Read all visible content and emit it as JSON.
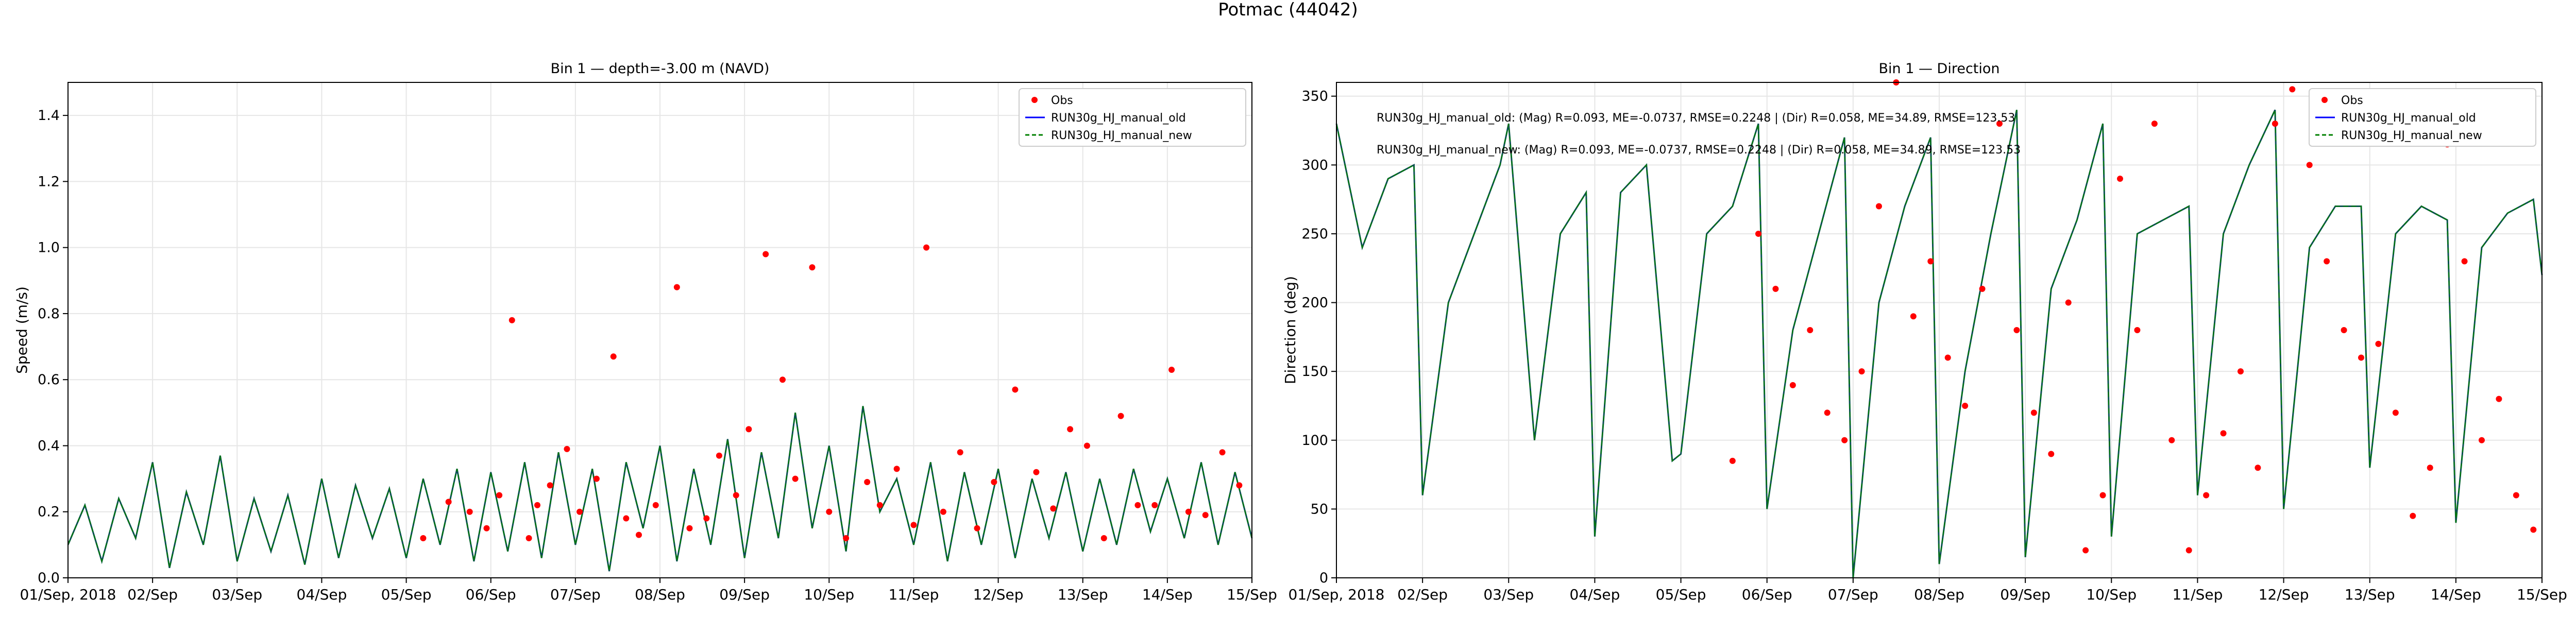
{
  "figure": {
    "title": "Potmac (44042)"
  },
  "chart_data": [
    {
      "type": "line",
      "title": "Bin 1 — depth=-3.00 m (NAVD)",
      "xlabel": "",
      "ylabel": "Speed (m/s)",
      "x_ticks": [
        "01/Sep, 2018",
        "02/Sep",
        "03/Sep",
        "04/Sep",
        "05/Sep",
        "06/Sep",
        "07/Sep",
        "08/Sep",
        "09/Sep",
        "10/Sep",
        "11/Sep",
        "12/Sep",
        "13/Sep",
        "14/Sep",
        "15/Sep"
      ],
      "xlim": [
        0,
        14
      ],
      "ylim": [
        0,
        1.5
      ],
      "y_ticks": [
        "0.0",
        "0.2",
        "0.4",
        "0.6",
        "0.8",
        "1.0",
        "1.2",
        "1.4"
      ],
      "grid": true,
      "legend_position": "top-right",
      "colors": {
        "obs": "#ff0000",
        "old": "#0000ff",
        "new": "#008000",
        "overlap": "#0b4f52"
      },
      "series": [
        {
          "name": "Obs",
          "kind": "scatter",
          "x": [
            4.2,
            4.5,
            4.75,
            4.95,
            5.1,
            5.25,
            5.45,
            5.55,
            5.7,
            5.9,
            6.05,
            6.25,
            6.45,
            6.6,
            6.75,
            6.95,
            7.2,
            7.35,
            7.55,
            7.7,
            7.9,
            8.05,
            8.25,
            8.45,
            8.6,
            8.8,
            9.0,
            9.2,
            9.45,
            9.6,
            9.8,
            10.0,
            10.15,
            10.35,
            10.55,
            10.75,
            10.95,
            11.2,
            11.45,
            11.65,
            11.85,
            12.05,
            12.25,
            12.45,
            12.65,
            12.85,
            13.05,
            13.25,
            13.45,
            13.65,
            13.85
          ],
          "y": [
            0.12,
            0.23,
            0.2,
            0.15,
            0.25,
            0.78,
            0.12,
            0.22,
            0.28,
            0.39,
            0.2,
            0.3,
            0.67,
            0.18,
            0.13,
            0.22,
            0.88,
            0.15,
            0.18,
            0.37,
            0.25,
            0.45,
            0.98,
            0.6,
            0.3,
            0.94,
            0.2,
            0.12,
            0.29,
            0.22,
            0.33,
            0.16,
            1.0,
            0.2,
            0.38,
            0.15,
            0.29,
            0.57,
            0.32,
            0.21,
            0.45,
            0.4,
            0.12,
            0.49,
            0.22,
            0.22,
            0.63,
            0.2,
            0.19,
            0.38,
            0.28
          ]
        },
        {
          "name": "RUN30g_HJ_manual_old",
          "kind": "line",
          "x": [
            0,
            0.2,
            0.4,
            0.6,
            0.8,
            1.0,
            1.2,
            1.4,
            1.6,
            1.8,
            2.0,
            2.2,
            2.4,
            2.6,
            2.8,
            3.0,
            3.2,
            3.4,
            3.6,
            3.8,
            4.0,
            4.2,
            4.4,
            4.6,
            4.8,
            5.0,
            5.2,
            5.4,
            5.6,
            5.8,
            6.0,
            6.2,
            6.4,
            6.6,
            6.8,
            7.0,
            7.2,
            7.4,
            7.6,
            7.8,
            8.0,
            8.2,
            8.4,
            8.6,
            8.8,
            9.0,
            9.2,
            9.4,
            9.6,
            9.8,
            10.0,
            10.2,
            10.4,
            10.6,
            10.8,
            11.0,
            11.2,
            11.4,
            11.6,
            11.8,
            12.0,
            12.2,
            12.4,
            12.6,
            12.8,
            13.0,
            13.2,
            13.4,
            13.6,
            13.8,
            14.0
          ],
          "y": [
            0.1,
            0.22,
            0.05,
            0.24,
            0.12,
            0.35,
            0.03,
            0.26,
            0.1,
            0.37,
            0.05,
            0.24,
            0.08,
            0.25,
            0.04,
            0.3,
            0.06,
            0.28,
            0.12,
            0.27,
            0.06,
            0.3,
            0.1,
            0.33,
            0.05,
            0.32,
            0.08,
            0.35,
            0.06,
            0.38,
            0.1,
            0.33,
            0.02,
            0.35,
            0.15,
            0.4,
            0.05,
            0.33,
            0.1,
            0.42,
            0.06,
            0.38,
            0.12,
            0.5,
            0.15,
            0.4,
            0.08,
            0.52,
            0.2,
            0.3,
            0.1,
            0.35,
            0.05,
            0.32,
            0.1,
            0.33,
            0.06,
            0.3,
            0.12,
            0.32,
            0.08,
            0.3,
            0.1,
            0.33,
            0.14,
            0.3,
            0.12,
            0.35,
            0.1,
            0.32,
            0.12
          ]
        },
        {
          "name": "RUN30g_HJ_manual_new",
          "kind": "line",
          "style": "dashed",
          "x": [
            0,
            0.2,
            0.4,
            0.6,
            0.8,
            1.0,
            1.2,
            1.4,
            1.6,
            1.8,
            2.0,
            2.2,
            2.4,
            2.6,
            2.8,
            3.0,
            3.2,
            3.4,
            3.6,
            3.8,
            4.0,
            4.2,
            4.4,
            4.6,
            4.8,
            5.0,
            5.2,
            5.4,
            5.6,
            5.8,
            6.0,
            6.2,
            6.4,
            6.6,
            6.8,
            7.0,
            7.2,
            7.4,
            7.6,
            7.8,
            8.0,
            8.2,
            8.4,
            8.6,
            8.8,
            9.0,
            9.2,
            9.4,
            9.6,
            9.8,
            10.0,
            10.2,
            10.4,
            10.6,
            10.8,
            11.0,
            11.2,
            11.4,
            11.6,
            11.8,
            12.0,
            12.2,
            12.4,
            12.6,
            12.8,
            13.0,
            13.2,
            13.4,
            13.6,
            13.8,
            14.0
          ],
          "y": [
            0.1,
            0.22,
            0.05,
            0.24,
            0.12,
            0.35,
            0.03,
            0.26,
            0.1,
            0.37,
            0.05,
            0.24,
            0.08,
            0.25,
            0.04,
            0.3,
            0.06,
            0.28,
            0.12,
            0.27,
            0.06,
            0.3,
            0.1,
            0.33,
            0.05,
            0.32,
            0.08,
            0.35,
            0.06,
            0.38,
            0.1,
            0.33,
            0.02,
            0.35,
            0.15,
            0.4,
            0.05,
            0.33,
            0.1,
            0.42,
            0.06,
            0.38,
            0.12,
            0.5,
            0.15,
            0.4,
            0.08,
            0.52,
            0.2,
            0.3,
            0.1,
            0.35,
            0.05,
            0.32,
            0.1,
            0.33,
            0.06,
            0.3,
            0.12,
            0.32,
            0.08,
            0.3,
            0.1,
            0.33,
            0.14,
            0.3,
            0.12,
            0.35,
            0.1,
            0.32,
            0.12
          ]
        }
      ],
      "annotations": []
    },
    {
      "type": "line",
      "title": "Bin 1 — Direction",
      "xlabel": "",
      "ylabel": "Direction (deg)",
      "x_ticks": [
        "01/Sep, 2018",
        "02/Sep",
        "03/Sep",
        "04/Sep",
        "05/Sep",
        "06/Sep",
        "07/Sep",
        "08/Sep",
        "09/Sep",
        "10/Sep",
        "11/Sep",
        "12/Sep",
        "13/Sep",
        "14/Sep",
        "15/Sep"
      ],
      "xlim": [
        0,
        14
      ],
      "ylim": [
        0,
        360
      ],
      "y_ticks": [
        "0",
        "50",
        "100",
        "150",
        "200",
        "250",
        "300",
        "350"
      ],
      "grid": true,
      "legend_position": "top-right",
      "colors": {
        "obs": "#ff0000",
        "old": "#0000ff",
        "new": "#008000",
        "overlap": "#0b4f52"
      },
      "series": [
        {
          "name": "Obs",
          "kind": "scatter",
          "x": [
            4.6,
            4.9,
            5.1,
            5.3,
            5.5,
            5.7,
            5.9,
            6.1,
            6.3,
            6.5,
            6.7,
            6.9,
            7.1,
            7.3,
            7.5,
            7.7,
            7.9,
            8.1,
            8.3,
            8.5,
            8.7,
            8.9,
            9.1,
            9.3,
            9.5,
            9.7,
            9.9,
            10.1,
            10.3,
            10.5,
            10.7,
            10.9,
            11.1,
            11.3,
            11.5,
            11.7,
            11.9,
            12.1,
            12.3,
            12.5,
            12.7,
            12.9,
            13.1,
            13.3,
            13.5,
            13.7,
            13.9
          ],
          "y": [
            85,
            250,
            210,
            140,
            180,
            120,
            100,
            150,
            270,
            360,
            190,
            230,
            160,
            125,
            210,
            330,
            180,
            120,
            90,
            200,
            20,
            60,
            290,
            180,
            330,
            100,
            20,
            60,
            105,
            150,
            80,
            330,
            355,
            300,
            230,
            180,
            160,
            170,
            120,
            45,
            80,
            315,
            230,
            100,
            130,
            60,
            35
          ]
        },
        {
          "name": "RUN30g_HJ_manual_old",
          "kind": "line",
          "x": [
            0,
            0.3,
            0.6,
            0.9,
            1.0,
            1.3,
            1.6,
            1.9,
            2.0,
            2.3,
            2.6,
            2.9,
            3.0,
            3.3,
            3.6,
            3.9,
            4.0,
            4.3,
            4.6,
            4.9,
            5.0,
            5.3,
            5.6,
            5.9,
            6.0,
            6.3,
            6.6,
            6.9,
            7.0,
            7.3,
            7.6,
            7.9,
            8.0,
            8.3,
            8.6,
            8.9,
            9.0,
            9.3,
            9.6,
            9.9,
            10.0,
            10.3,
            10.6,
            10.9,
            11.0,
            11.3,
            11.6,
            11.9,
            12.0,
            12.3,
            12.6,
            12.9,
            13.0,
            13.3,
            13.6,
            13.9,
            14.0
          ],
          "y": [
            330,
            240,
            290,
            300,
            60,
            200,
            250,
            300,
            330,
            100,
            250,
            280,
            30,
            280,
            300,
            85,
            90,
            250,
            270,
            330,
            50,
            180,
            250,
            320,
            0,
            200,
            270,
            320,
            10,
            150,
            250,
            340,
            15,
            210,
            260,
            330,
            30,
            250,
            260,
            270,
            60,
            250,
            300,
            340,
            50,
            240,
            270,
            270,
            80,
            250,
            270,
            260,
            40,
            240,
            265,
            275,
            220
          ]
        },
        {
          "name": "RUN30g_HJ_manual_new",
          "kind": "line",
          "style": "dashed",
          "x": [
            0,
            0.3,
            0.6,
            0.9,
            1.0,
            1.3,
            1.6,
            1.9,
            2.0,
            2.3,
            2.6,
            2.9,
            3.0,
            3.3,
            3.6,
            3.9,
            4.0,
            4.3,
            4.6,
            4.9,
            5.0,
            5.3,
            5.6,
            5.9,
            6.0,
            6.3,
            6.6,
            6.9,
            7.0,
            7.3,
            7.6,
            7.9,
            8.0,
            8.3,
            8.6,
            8.9,
            9.0,
            9.3,
            9.6,
            9.9,
            10.0,
            10.3,
            10.6,
            10.9,
            11.0,
            11.3,
            11.6,
            11.9,
            12.0,
            12.3,
            12.6,
            12.9,
            13.0,
            13.3,
            13.6,
            13.9,
            14.0
          ],
          "y": [
            330,
            240,
            290,
            300,
            60,
            200,
            250,
            300,
            330,
            100,
            250,
            280,
            30,
            280,
            300,
            85,
            90,
            250,
            270,
            330,
            50,
            180,
            250,
            320,
            0,
            200,
            270,
            320,
            10,
            150,
            250,
            340,
            15,
            210,
            260,
            330,
            30,
            250,
            260,
            270,
            60,
            250,
            300,
            340,
            50,
            240,
            270,
            270,
            80,
            250,
            270,
            260,
            40,
            240,
            265,
            275,
            220
          ]
        }
      ],
      "annotations": [
        "RUN30g_HJ_manual_old: (Mag) R=0.093, ME=-0.0737, RMSE=0.2248 | (Dir) R=0.058, ME=34.89, RMSE=123.53",
        "RUN30g_HJ_manual_new: (Mag) R=0.093, ME=-0.0737, RMSE=0.2248 | (Dir) R=0.058, ME=34.89, RMSE=123.53"
      ]
    }
  ]
}
